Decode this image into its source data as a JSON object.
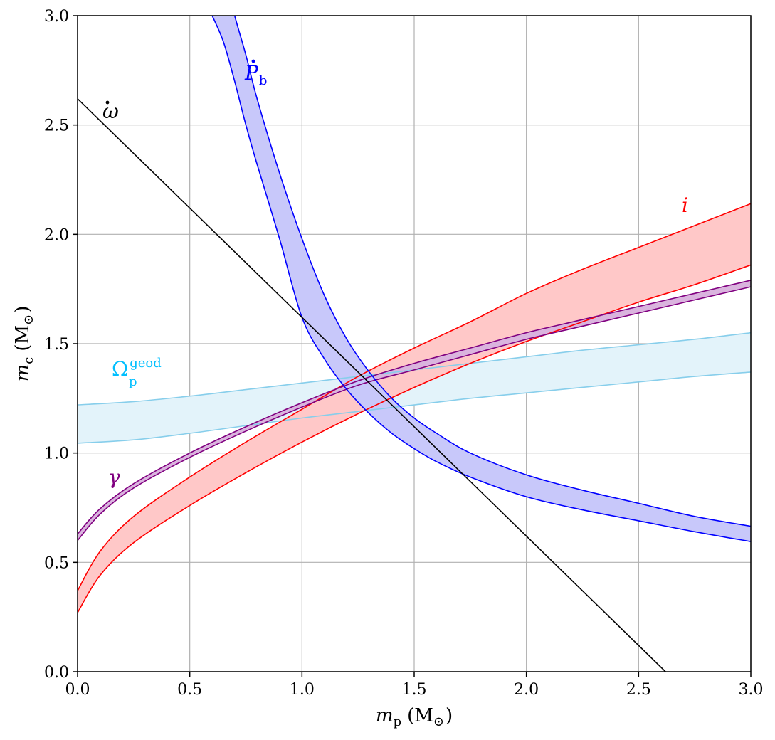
{
  "chart_data": {
    "type": "area",
    "xlabel": {
      "symbol": "m",
      "subscript": "p",
      "unit_open": "(M",
      "unit_sub": "⊙",
      "unit_close": ")"
    },
    "ylabel": {
      "symbol": "m",
      "subscript": "c",
      "unit_open": "(M",
      "unit_sub": "⊙",
      "unit_close": ")"
    },
    "xlim": [
      0,
      3
    ],
    "ylim": [
      0,
      3
    ],
    "grid": true,
    "x_ticks": [
      "0.0",
      "0.5",
      "1.0",
      "1.5",
      "2.0",
      "2.5",
      "3.0"
    ],
    "y_ticks": [
      "0.0",
      "0.5",
      "1.0",
      "1.5",
      "2.0",
      "2.5",
      "3.0"
    ],
    "series": [
      {
        "name": "Ω",
        "label_sub": "p",
        "label_sup": "geod",
        "color": "#00bfff",
        "edge_color": "#87ceeb",
        "fill_color": "#e3f3fa",
        "kind": "band",
        "x": [
          0.0,
          0.25,
          0.5,
          0.75,
          1.0,
          1.25,
          1.5,
          1.75,
          2.0,
          2.25,
          2.5,
          2.75,
          3.0
        ],
        "lower": [
          1.045,
          1.06,
          1.09,
          1.125,
          1.16,
          1.19,
          1.22,
          1.25,
          1.275,
          1.3,
          1.325,
          1.35,
          1.37
        ],
        "upper": [
          1.22,
          1.235,
          1.26,
          1.29,
          1.32,
          1.35,
          1.38,
          1.41,
          1.44,
          1.47,
          1.495,
          1.52,
          1.55
        ]
      },
      {
        "name": "i",
        "color": "#ff0000",
        "edge_color": "#ff0000",
        "fill_color": "#ffc8c8",
        "kind": "band",
        "x": [
          0.0,
          0.1,
          0.25,
          0.5,
          0.75,
          1.0,
          1.25,
          1.5,
          1.75,
          2.0,
          2.25,
          2.5,
          2.75,
          3.0
        ],
        "lower": [
          0.27,
          0.44,
          0.59,
          0.76,
          0.91,
          1.05,
          1.18,
          1.3,
          1.41,
          1.51,
          1.6,
          1.69,
          1.77,
          1.86
        ],
        "upper": [
          0.37,
          0.55,
          0.71,
          0.89,
          1.05,
          1.2,
          1.35,
          1.48,
          1.6,
          1.73,
          1.84,
          1.94,
          2.04,
          2.14
        ]
      },
      {
        "name": "γ",
        "color": "#800080",
        "edge_color": "#800080",
        "fill_color": "#dab4de",
        "kind": "band",
        "x": [
          0.0,
          0.1,
          0.25,
          0.5,
          0.75,
          1.0,
          1.25,
          1.5,
          1.75,
          2.0,
          2.25,
          2.5,
          2.75,
          3.0
        ],
        "lower": [
          0.6,
          0.72,
          0.84,
          0.98,
          1.1,
          1.21,
          1.31,
          1.38,
          1.45,
          1.52,
          1.58,
          1.64,
          1.7,
          1.76
        ],
        "upper": [
          0.63,
          0.745,
          0.86,
          1.0,
          1.12,
          1.23,
          1.33,
          1.41,
          1.48,
          1.55,
          1.61,
          1.67,
          1.73,
          1.79
        ]
      },
      {
        "name": "P",
        "label_sub": "b",
        "label_dot": true,
        "color": "#0000ff",
        "edge_color": "#0000ff",
        "fill_color": "#c8c8fa",
        "kind": "band",
        "x": [
          0.6,
          0.65,
          0.7,
          0.75,
          0.8,
          0.9,
          1.0,
          1.1,
          1.2,
          1.3,
          1.4,
          1.5,
          1.6,
          1.75,
          2.0,
          2.25,
          2.5,
          2.75,
          3.0
        ],
        "lower": [
          3.0,
          2.88,
          2.7,
          2.5,
          2.32,
          1.98,
          1.62,
          1.43,
          1.29,
          1.18,
          1.09,
          1.02,
          0.96,
          0.89,
          0.8,
          0.74,
          0.69,
          0.64,
          0.595
        ],
        "upper": [
          3.3,
          3.2,
          3.0,
          2.82,
          2.62,
          2.28,
          1.98,
          1.72,
          1.52,
          1.37,
          1.25,
          1.16,
          1.09,
          1.0,
          0.9,
          0.83,
          0.77,
          0.71,
          0.665
        ]
      },
      {
        "name": "ω",
        "label_dot": true,
        "color": "#000000",
        "edge_color": "#000000",
        "kind": "line",
        "x": [
          0.0,
          2.62
        ],
        "y": [
          2.62,
          0.0
        ]
      }
    ]
  }
}
